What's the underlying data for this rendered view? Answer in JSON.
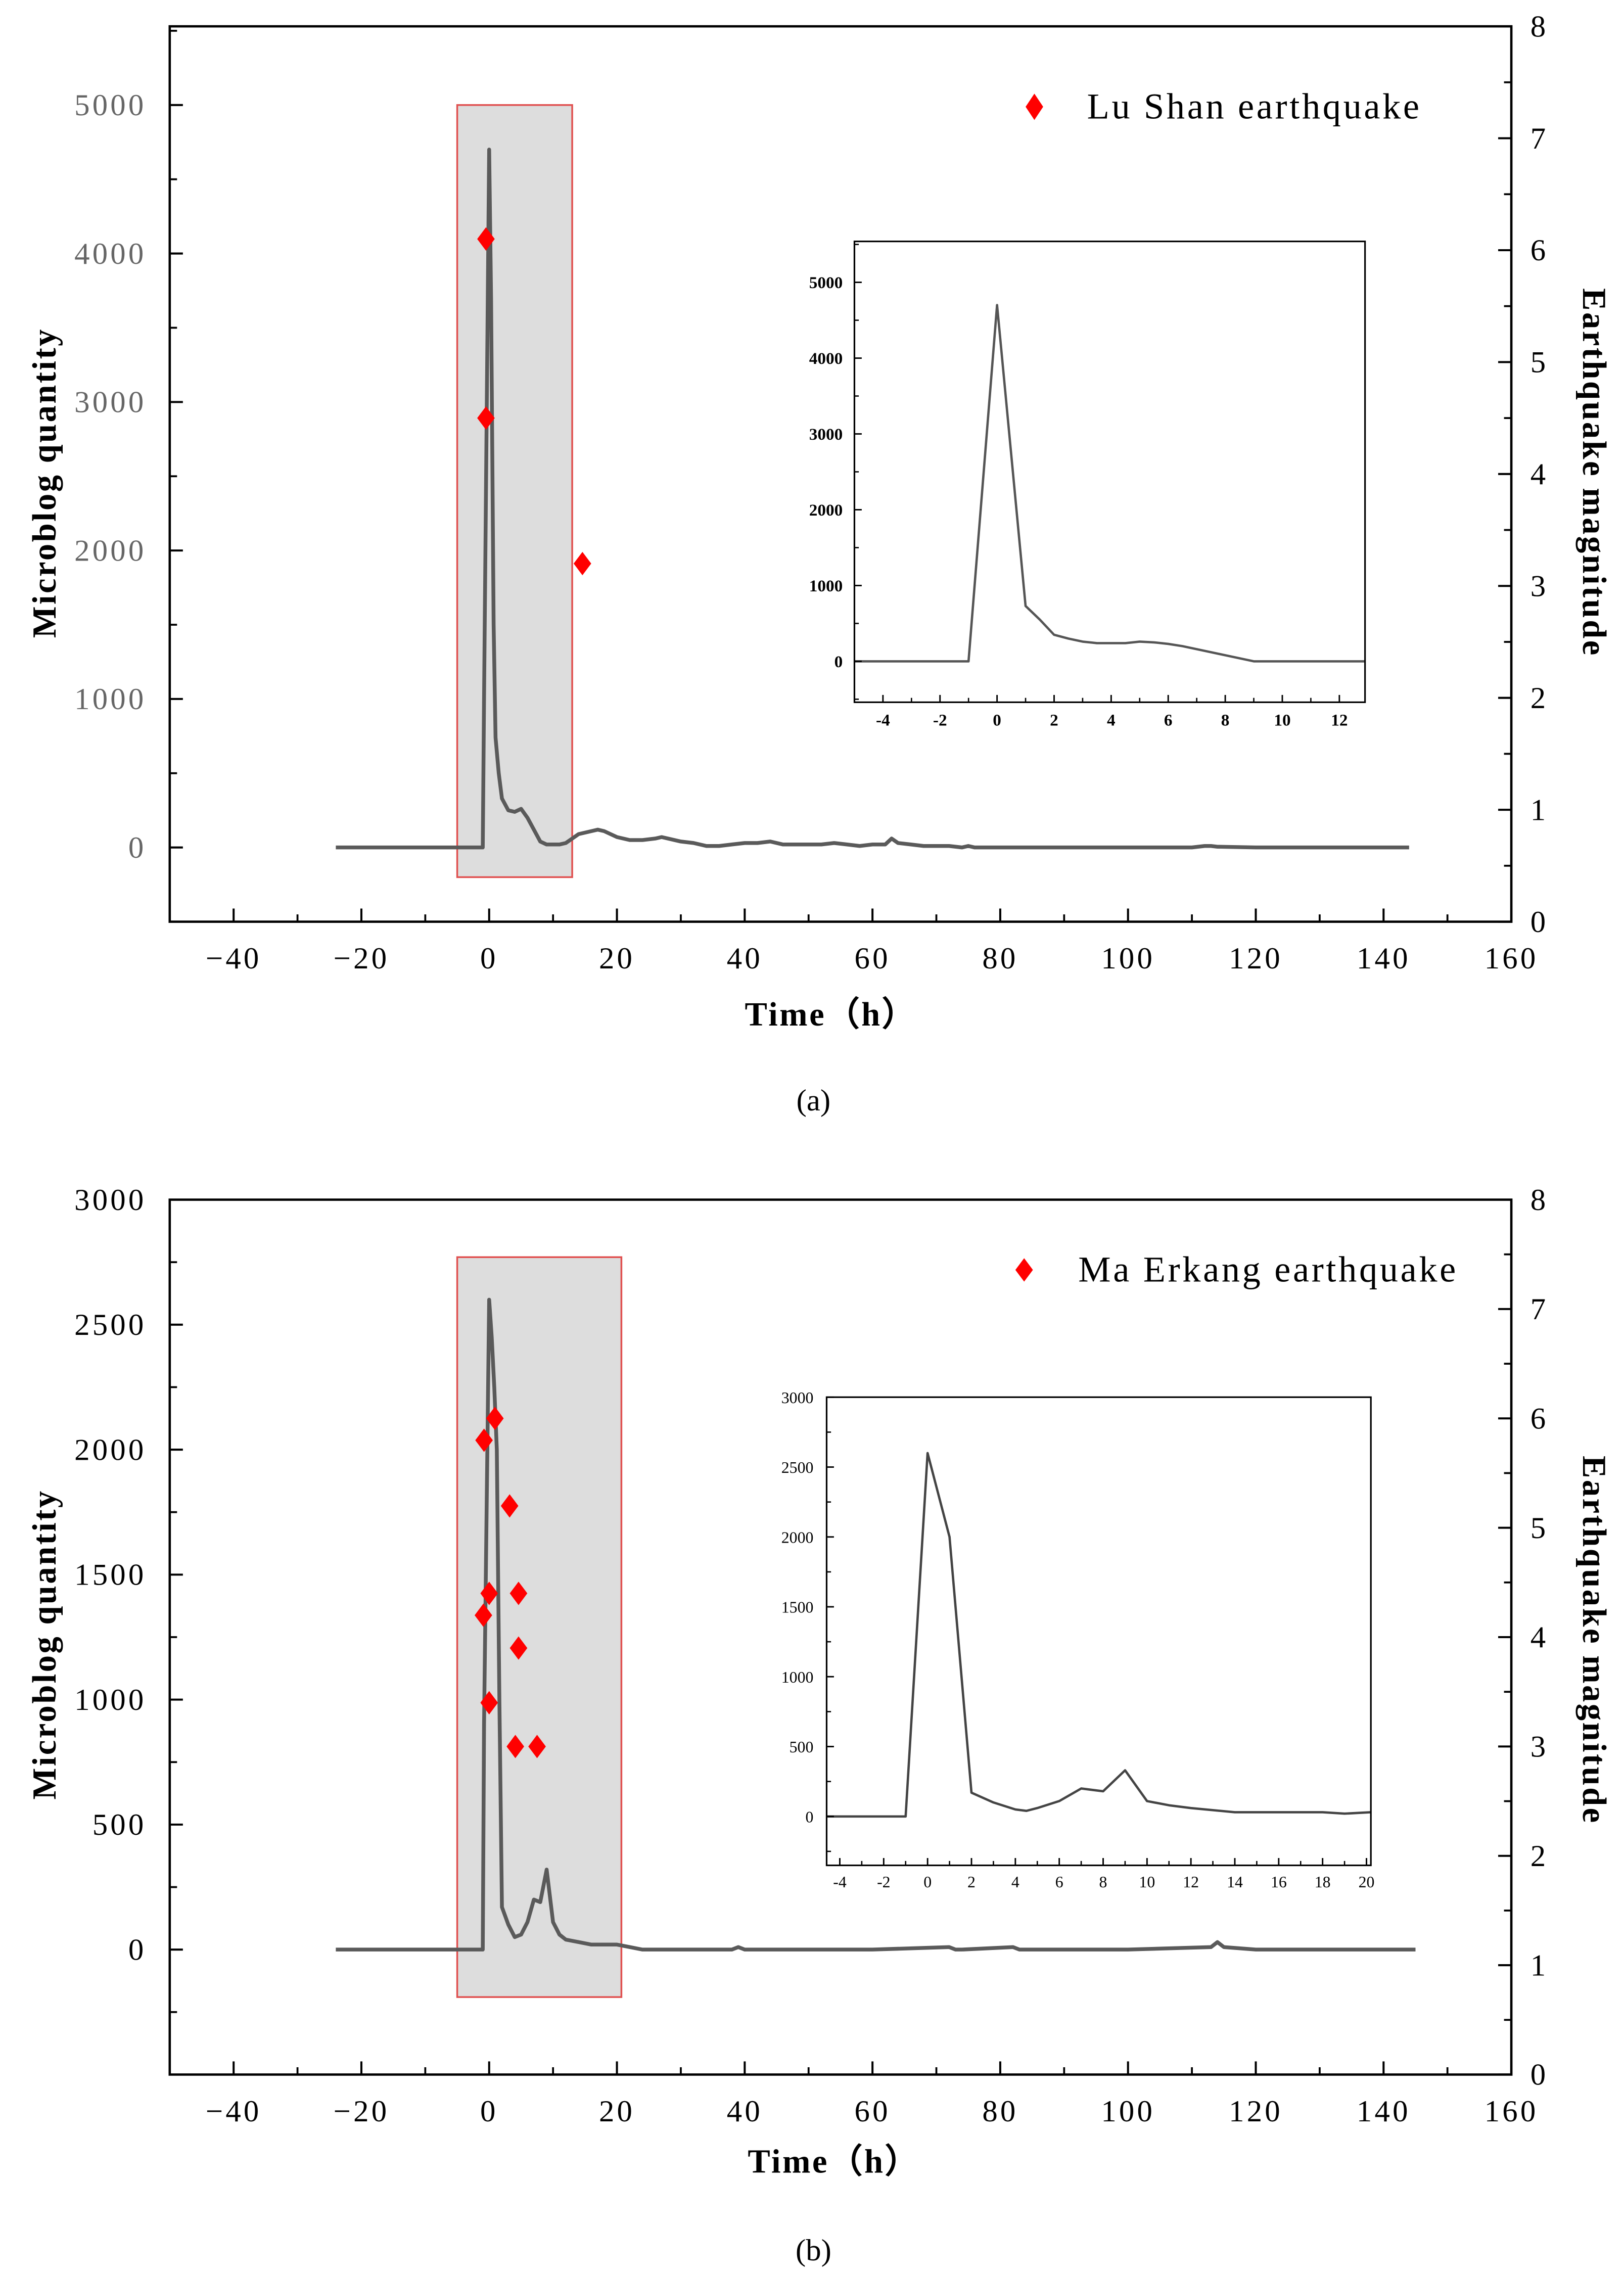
{
  "chart_data": [
    {
      "panel_label": "(a)",
      "type": "line",
      "xlabel": "Time（h）",
      "ylabel": "Microblog quantity",
      "ylabel_right": "Earthquake magnitude",
      "grid": false,
      "xlim": [
        -50,
        160
      ],
      "ylim": [
        -500,
        5530
      ],
      "ylim_right": [
        0,
        8
      ],
      "xticks": [
        -40,
        -20,
        0,
        20,
        40,
        60,
        80,
        100,
        120,
        140,
        160
      ],
      "xtick_labels": [
        "−40",
        "−20",
        "0",
        "20",
        "40",
        "60",
        "80",
        "100",
        "120",
        "140",
        "160"
      ],
      "xminor_step": 10,
      "yticks": [
        0,
        1000,
        2000,
        3000,
        4000,
        5000
      ],
      "ytick_labels": [
        "0",
        "1000",
        "2000",
        "3000",
        "4000",
        "5000"
      ],
      "yminor_step": 500,
      "yticks_right": [
        0,
        1,
        2,
        3,
        4,
        5,
        6,
        7,
        8
      ],
      "ytick_labels_right": [
        "0",
        "1",
        "2",
        "3",
        "4",
        "5",
        "6",
        "7",
        "8"
      ],
      "yminor_step_right": 0.5,
      "highlight_region": {
        "x": [
          -5,
          13
        ],
        "y": [
          -200,
          5000
        ]
      },
      "microblog": {
        "x": [
          -24,
          -1,
          -0.8,
          0,
          0.3,
          0.7,
          1,
          1.5,
          2,
          3,
          4,
          5,
          6,
          7,
          8,
          9,
          10,
          11,
          12,
          13,
          14,
          16,
          17,
          18,
          19,
          20,
          22,
          24,
          26,
          27,
          28,
          30,
          32,
          34,
          36,
          38,
          40,
          42,
          44,
          46,
          50,
          52,
          54,
          56,
          58,
          60,
          62,
          63,
          64,
          66,
          68,
          72,
          74,
          75,
          76,
          90,
          100,
          110,
          112,
          113,
          114,
          120,
          144
        ],
        "y": [
          0,
          0,
          1000,
          4700,
          3700,
          1500,
          740,
          500,
          330,
          250,
          240,
          260,
          200,
          120,
          40,
          20,
          20,
          20,
          30,
          60,
          90,
          110,
          120,
          110,
          90,
          70,
          50,
          50,
          60,
          70,
          60,
          40,
          30,
          10,
          10,
          20,
          30,
          30,
          40,
          20,
          20,
          20,
          30,
          20,
          10,
          20,
          20,
          60,
          30,
          20,
          10,
          10,
          0,
          10,
          0,
          0,
          0,
          0,
          10,
          10,
          5,
          0,
          0
        ]
      },
      "earthquakes": {
        "name": "Lu Shan earthquake",
        "legend": "top-right",
        "time": [
          -0.5,
          -0.5,
          14.6
        ],
        "magnitude": [
          6.1,
          4.5,
          3.2
        ]
      },
      "inset": {
        "type": "line",
        "xlim": [
          -5,
          12.9
        ],
        "ylim": [
          -540,
          5540
        ],
        "xticks": [
          -4,
          -2,
          0,
          2,
          4,
          6,
          8,
          10,
          12
        ],
        "xtick_labels": [
          "-4",
          "-2",
          "0",
          "2",
          "4",
          "6",
          "8",
          "10",
          "12"
        ],
        "xminor_step": 1,
        "yticks": [
          0,
          1000,
          2000,
          3000,
          4000,
          5000
        ],
        "ytick_labels": [
          "0",
          "1000",
          "2000",
          "3000",
          "4000",
          "5000"
        ],
        "yminor_step": 500,
        "microblog": {
          "x": [
            -5,
            -1,
            0,
            1,
            1.5,
            2,
            2.5,
            3,
            3.5,
            4,
            4.5,
            5,
            5.5,
            6,
            6.5,
            7,
            7.5,
            8,
            8.5,
            9,
            10,
            11,
            12,
            12.9
          ],
          "y": [
            0,
            0,
            4700,
            730,
            550,
            350,
            300,
            260,
            240,
            240,
            240,
            260,
            250,
            230,
            200,
            160,
            120,
            80,
            40,
            0,
            0,
            0,
            0,
            0
          ]
        }
      },
      "colors": {
        "line": "#5a5a5a",
        "inset_line": "#555555",
        "marker": "#ff0000",
        "highlight_fill": "#dddddd",
        "highlight_border": "#e0504f",
        "left_tick_label": "#666666"
      }
    },
    {
      "panel_label": "(b)",
      "type": "line",
      "xlabel": "Time（h）",
      "ylabel": "Microblog quantity",
      "ylabel_right": "Earthquake magnitude",
      "grid": false,
      "xlim": [
        -50,
        160
      ],
      "ylim": [
        -500,
        3000
      ],
      "ylim_right": [
        0,
        8
      ],
      "xticks": [
        -40,
        -20,
        0,
        20,
        40,
        60,
        80,
        100,
        120,
        140,
        160
      ],
      "xtick_labels": [
        "−40",
        "−20",
        "0",
        "20",
        "40",
        "60",
        "80",
        "100",
        "120",
        "140",
        "160"
      ],
      "xminor_step": 10,
      "yticks": [
        0,
        500,
        1000,
        1500,
        2000,
        2500,
        3000
      ],
      "ytick_labels": [
        "0",
        "500",
        "1000",
        "1500",
        "2000",
        "2500",
        "3000"
      ],
      "yminor_step": 250,
      "yticks_right": [
        0,
        1,
        2,
        3,
        4,
        5,
        6,
        7,
        8
      ],
      "ytick_labels_right": [
        "0",
        "1",
        "2",
        "3",
        "4",
        "5",
        "6",
        "7",
        "8"
      ],
      "yminor_step_right": 0.5,
      "highlight_region": {
        "x": [
          -5,
          20.7
        ],
        "y": [
          -190,
          2770
        ]
      },
      "microblog": {
        "x": [
          -24,
          -1,
          -0.8,
          0,
          0.4,
          0.8,
          1.2,
          1.6,
          2,
          3,
          4,
          5,
          6,
          7,
          8,
          9,
          10,
          11,
          12,
          14,
          16,
          18,
          20,
          22,
          24,
          30,
          38,
          39,
          40,
          60,
          72,
          73,
          74,
          82,
          83,
          84,
          100,
          113,
          114,
          115,
          120,
          145
        ],
        "y": [
          0,
          0,
          900,
          2600,
          2450,
          2250,
          2000,
          1000,
          170,
          100,
          50,
          60,
          110,
          200,
          190,
          320,
          110,
          60,
          40,
          30,
          20,
          20,
          20,
          10,
          0,
          0,
          0,
          10,
          0,
          0,
          10,
          0,
          0,
          10,
          0,
          0,
          0,
          10,
          30,
          10,
          0,
          0
        ]
      },
      "earthquakes": {
        "name": "Ma Erkang earthquake",
        "legend": "top-right",
        "time": [
          -0.8,
          0.9,
          3.2,
          0,
          4.6,
          -0.9,
          4.6,
          0,
          4.1,
          7.5
        ],
        "magnitude": [
          5.8,
          6.0,
          5.2,
          4.4,
          4.4,
          4.2,
          3.9,
          3.4,
          3.0,
          3.0
        ]
      },
      "inset": {
        "type": "line",
        "xlim": [
          -4.6,
          20.2
        ],
        "ylim": [
          -350,
          3000
        ],
        "xticks": [
          -4,
          -2,
          0,
          2,
          4,
          6,
          8,
          10,
          12,
          14,
          16,
          18,
          20
        ],
        "xtick_labels": [
          "-4",
          "-2",
          "0",
          "2",
          "4",
          "6",
          "8",
          "10",
          "12",
          "14",
          "16",
          "18",
          "20"
        ],
        "xminor_step": 1,
        "yticks": [
          0,
          500,
          1000,
          1500,
          2000,
          2500,
          3000
        ],
        "ytick_labels": [
          "0",
          "500",
          "1000",
          "1500",
          "2000",
          "2500",
          "3000"
        ],
        "yminor_step": 250,
        "microblog": {
          "x": [
            -4.6,
            -1,
            0,
            1,
            2,
            3,
            4,
            4.5,
            5,
            6,
            7,
            8,
            9,
            10,
            11,
            12,
            14,
            16,
            18,
            19,
            20.2
          ],
          "y": [
            0,
            0,
            2600,
            2000,
            170,
            100,
            50,
            40,
            60,
            110,
            200,
            180,
            330,
            110,
            80,
            60,
            30,
            30,
            30,
            20,
            30
          ]
        }
      },
      "colors": {
        "line": "#5a5a5a",
        "inset_line": "#444444",
        "marker": "#ff0000",
        "highlight_fill": "#dddddd",
        "highlight_border": "#e0504f",
        "left_tick_label": "#000000"
      }
    }
  ]
}
